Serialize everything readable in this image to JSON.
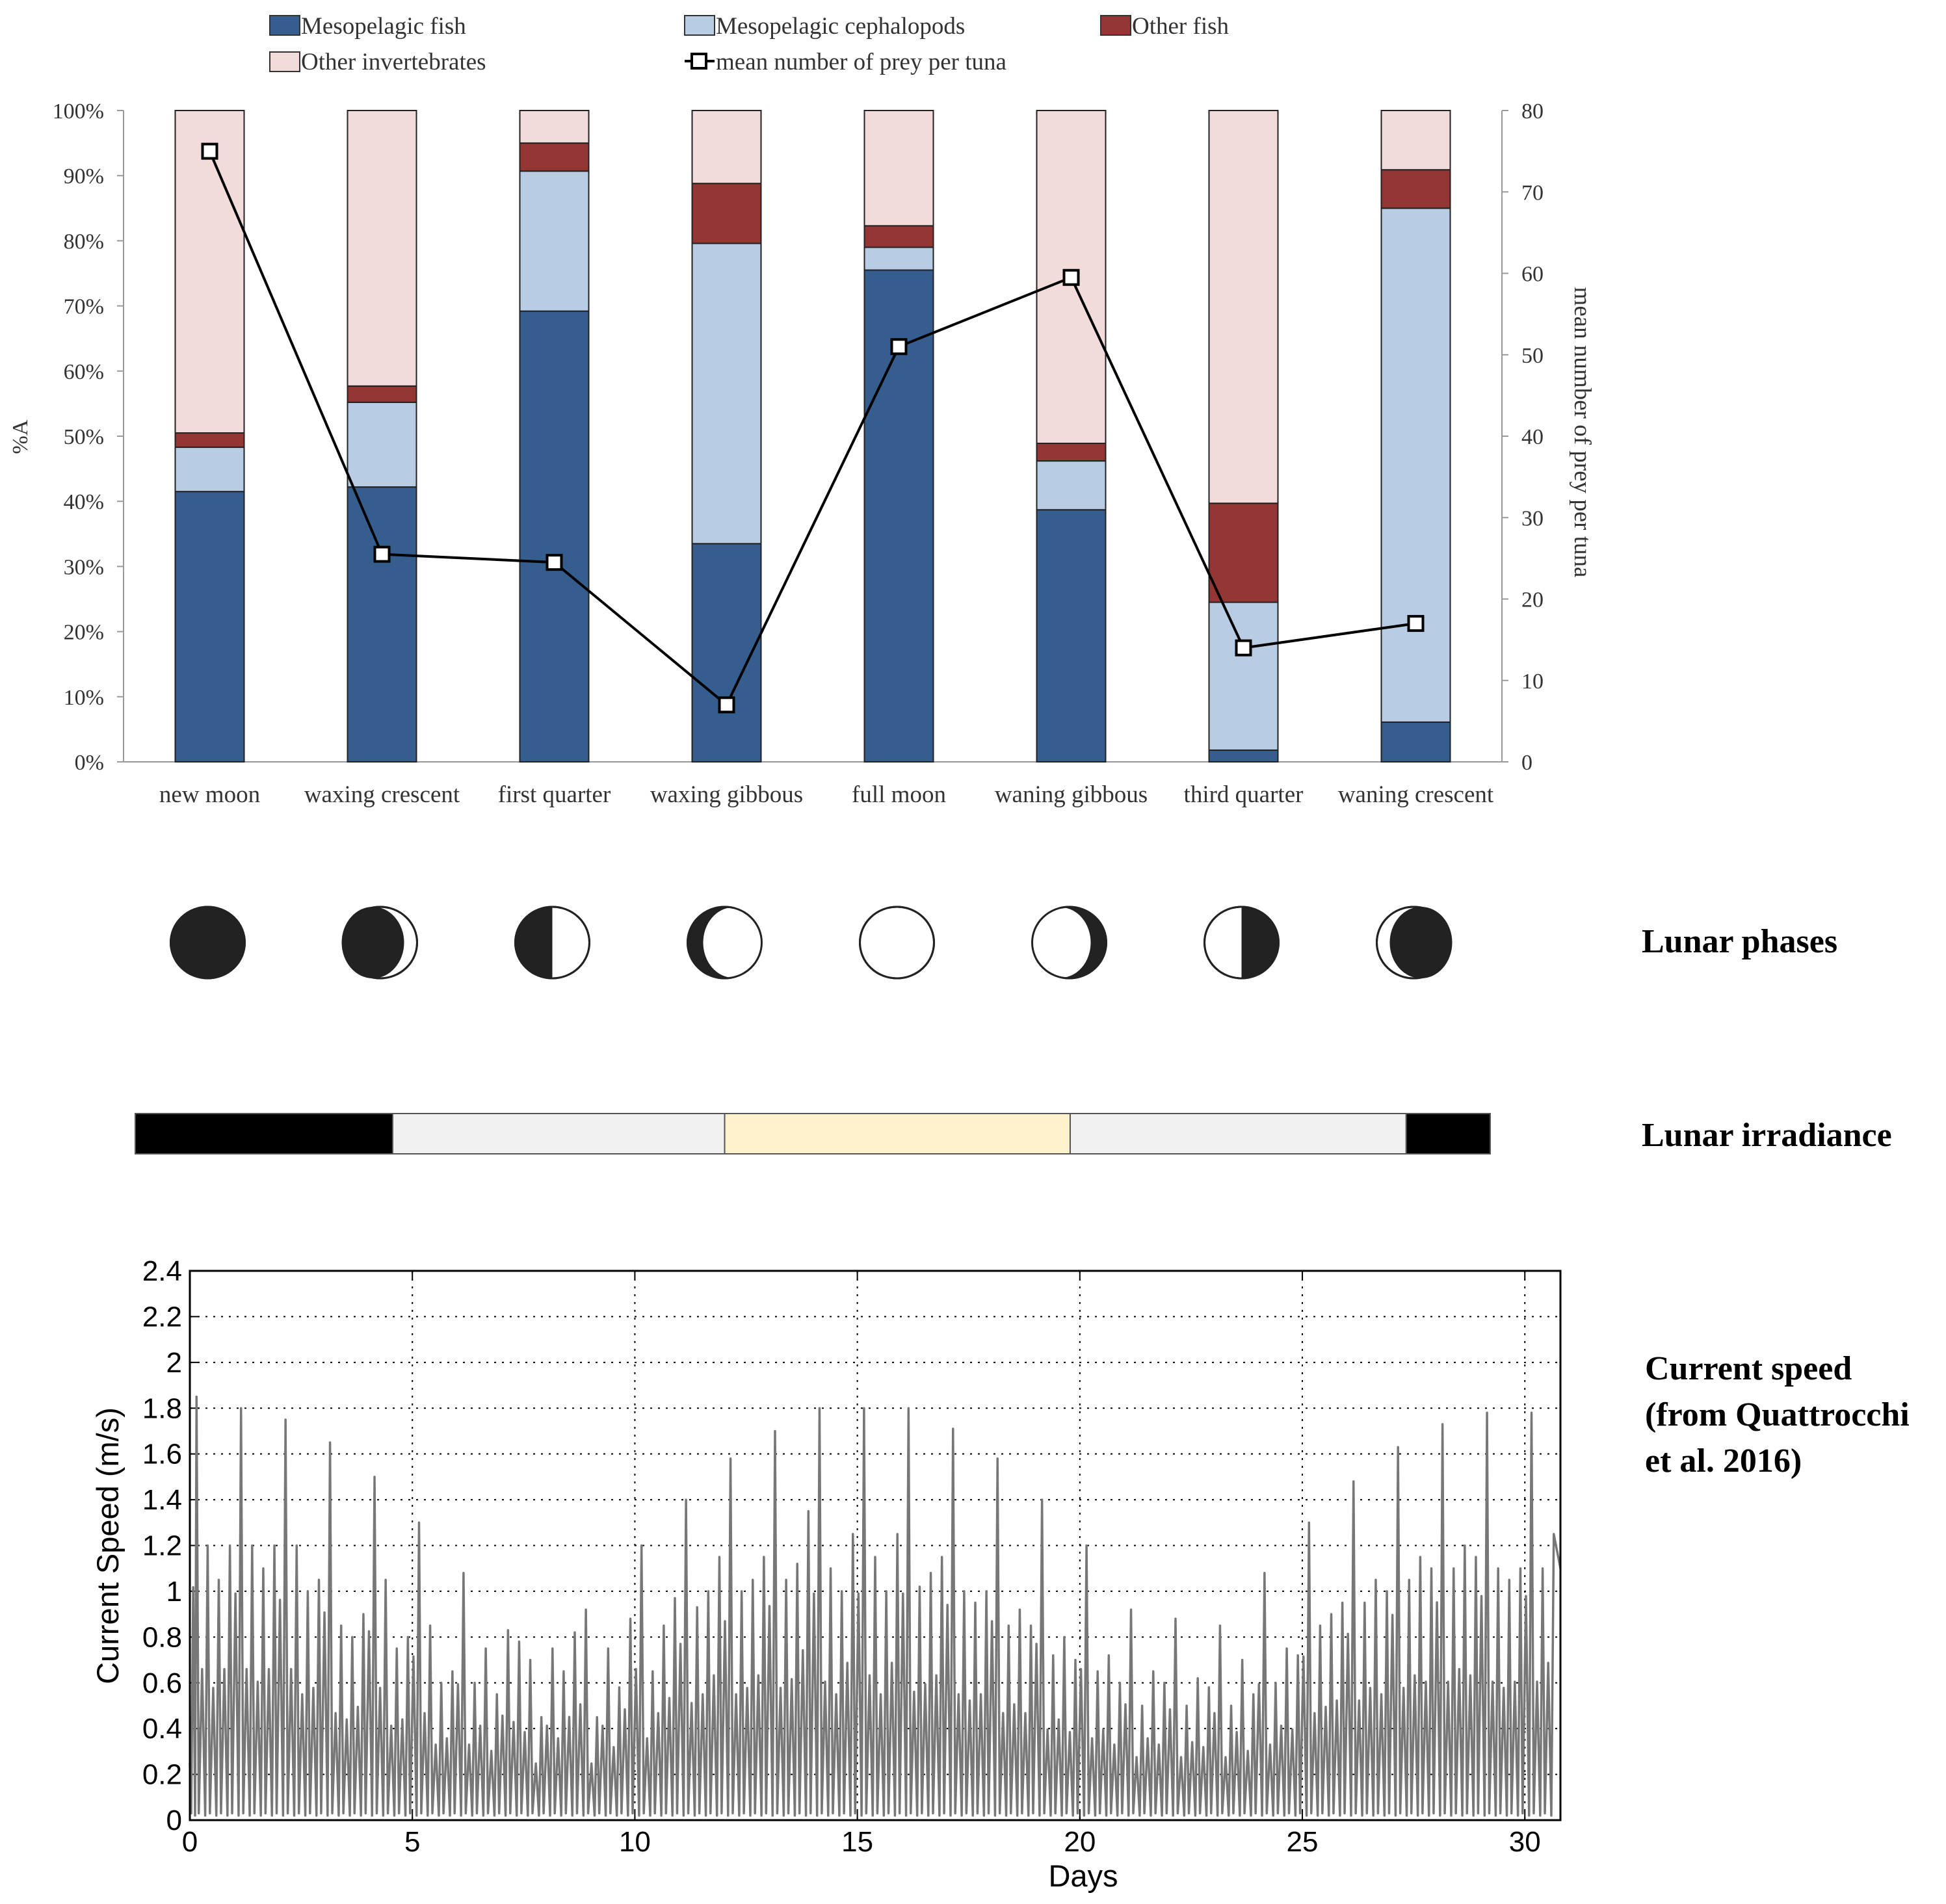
{
  "chart_data": [
    {
      "type": "bar",
      "subtype": "stacked-percent-with-line",
      "categories": [
        "new moon",
        "waxing crescent",
        "first quarter",
        "waxing gibbous",
        "full moon",
        "waning gibbous",
        "third quarter",
        "waning crescent"
      ],
      "series": [
        {
          "name": "Mesopelagic fish",
          "color": "#355e8f",
          "values": [
            41.5,
            42.2,
            69.2,
            33.5,
            75.5,
            38.7,
            1.8,
            6.1
          ]
        },
        {
          "name": "Mesopelagic cephalopods",
          "color": "#b8cce4",
          "values": [
            6.8,
            13.0,
            21.5,
            46.1,
            3.5,
            7.5,
            22.7,
            78.9
          ]
        },
        {
          "name": "Other fish",
          "color": "#943634",
          "values": [
            2.2,
            2.5,
            4.3,
            9.2,
            3.3,
            2.7,
            15.2,
            5.9
          ]
        },
        {
          "name": "Other invertebrates",
          "color": "#f2dcdb",
          "values": [
            49.5,
            42.3,
            5.0,
            11.2,
            17.7,
            51.1,
            60.3,
            9.1
          ]
        }
      ],
      "line_series": {
        "name": "mean number of prey per tuna",
        "axis": "right",
        "values": [
          75,
          25.5,
          24.5,
          7,
          51,
          59.5,
          14,
          17
        ]
      },
      "legend": {
        "row1": [
          "Mesopelagic fish",
          "Mesopelagic cephalopods",
          "Other fish"
        ],
        "row2": [
          "Other invertebrates",
          "mean number of prey per tuna"
        ],
        "placement": "top"
      },
      "ylabel": "%A",
      "y2label": "mean number of prey per tuna",
      "ylim": [
        0,
        100
      ],
      "y2lim": [
        0,
        80
      ],
      "yticks": [
        "0%",
        "10%",
        "20%",
        "30%",
        "40%",
        "50%",
        "60%",
        "70%",
        "80%",
        "90%",
        "100%"
      ],
      "y2ticks": [
        "0",
        "10",
        "20",
        "30",
        "40",
        "50",
        "60",
        "70",
        "80"
      ]
    },
    {
      "type": "other",
      "name": "lunar phase icons",
      "label": "Lunar phases",
      "phases": [
        "new moon",
        "waxing crescent",
        "first quarter",
        "waxing gibbous",
        "full moon",
        "waning gibbous",
        "third quarter",
        "waning crescent"
      ]
    },
    {
      "type": "other",
      "name": "lunar irradiance band",
      "label": "Lunar irradiance",
      "segments": [
        {
          "level": "dark",
          "color": "#000000",
          "fraction": 0.19
        },
        {
          "level": "intermediate",
          "color": "#f0f0f0",
          "fraction": 0.245
        },
        {
          "level": "bright",
          "color": "#fff2cc",
          "fraction": 0.255
        },
        {
          "level": "intermediate",
          "color": "#f0f0f0",
          "fraction": 0.248
        },
        {
          "level": "dark",
          "color": "#000000",
          "fraction": 0.062
        }
      ]
    },
    {
      "type": "line",
      "title": "",
      "xlabel": "Days",
      "ylabel": "Current Speed (m/s)",
      "xlim": [
        0,
        30.8
      ],
      "ylim": [
        0,
        2.4
      ],
      "xticks": [
        "0",
        "5",
        "10",
        "15",
        "20",
        "25",
        "30"
      ],
      "yticks": [
        "0",
        "0.2",
        "0.4",
        "0.6",
        "0.8",
        "1",
        "1.2",
        "1.4",
        "1.6",
        "1.8",
        "2",
        "2.2",
        "2.4"
      ],
      "grid": true,
      "annotation": [
        "Current speed",
        "(from Quattrocchi",
        "et al. 2016)"
      ],
      "series": [
        {
          "name": "Current speed",
          "color": "#777777",
          "peak_days": [
            0.15,
            0.4,
            0.65,
            0.9,
            1.15,
            1.4,
            1.65,
            1.9,
            2.15,
            2.4,
            2.65,
            2.9,
            3.15,
            3.4,
            3.65,
            3.9,
            4.15,
            4.4,
            4.65,
            4.9,
            5.15,
            5.4,
            5.65,
            5.9,
            6.15,
            6.4,
            6.65,
            6.9,
            7.15,
            7.4,
            7.65,
            7.9,
            8.15,
            8.4,
            8.65,
            8.9,
            9.15,
            9.4,
            9.65,
            9.9,
            10.15,
            10.4,
            10.65,
            10.9,
            11.15,
            11.4,
            11.65,
            11.9,
            12.15,
            12.4,
            12.65,
            12.9,
            13.15,
            13.4,
            13.65,
            13.9,
            14.15,
            14.4,
            14.65,
            14.9,
            15.15,
            15.4,
            15.65,
            15.9,
            16.15,
            16.4,
            16.65,
            16.9,
            17.15,
            17.4,
            17.65,
            17.9,
            18.15,
            18.4,
            18.65,
            18.9,
            19.15,
            19.4,
            19.65,
            19.9,
            20.15,
            20.4,
            20.65,
            20.9,
            21.15,
            21.4,
            21.65,
            21.9,
            22.15,
            22.4,
            22.65,
            22.9,
            23.15,
            23.4,
            23.65,
            23.9,
            24.15,
            24.4,
            24.65,
            24.9,
            25.15,
            25.4,
            25.65,
            25.9,
            26.15,
            26.4,
            26.65,
            26.9,
            27.15,
            27.4,
            27.65,
            27.9,
            28.15,
            28.4,
            28.65,
            28.9,
            29.15,
            29.4,
            29.65,
            29.9,
            30.15,
            30.4,
            30.65
          ],
          "peak_values": [
            1.85,
            1.2,
            1.05,
            1.2,
            1.8,
            1.2,
            1.1,
            1.2,
            1.75,
            1.2,
            1.0,
            1.05,
            1.65,
            0.85,
            0.8,
            0.9,
            1.5,
            1.05,
            0.75,
            0.8,
            1.3,
            0.85,
            0.6,
            0.65,
            1.08,
            0.6,
            0.75,
            0.55,
            0.83,
            0.78,
            0.7,
            0.45,
            0.75,
            0.65,
            0.82,
            0.92,
            0.45,
            0.75,
            0.58,
            0.88,
            1.2,
            0.65,
            0.85,
            0.97,
            1.4,
            0.93,
            1.0,
            1.15,
            1.58,
            1.0,
            1.05,
            1.15,
            1.7,
            1.05,
            1.12,
            1.35,
            1.8,
            1.1,
            1.0,
            1.25,
            1.8,
            1.15,
            1.0,
            1.25,
            1.8,
            1.02,
            1.08,
            1.15,
            1.71,
            1.0,
            0.95,
            1.0,
            1.58,
            0.85,
            0.92,
            0.85,
            1.4,
            0.72,
            0.8,
            0.7,
            1.2,
            0.65,
            0.72,
            0.6,
            0.92,
            0.5,
            0.65,
            0.6,
            0.88,
            0.5,
            0.62,
            0.58,
            0.85,
            0.5,
            0.7,
            0.55,
            1.08,
            0.6,
            0.75,
            0.72,
            1.3,
            0.85,
            0.9,
            0.95,
            1.48,
            0.95,
            1.05,
            1.0,
            1.63,
            1.05,
            1.15,
            1.1,
            1.73,
            1.1,
            1.2,
            1.15,
            1.78,
            1.1,
            1.05,
            1.1,
            1.78,
            1.1,
            1.25
          ]
        }
      ]
    }
  ]
}
